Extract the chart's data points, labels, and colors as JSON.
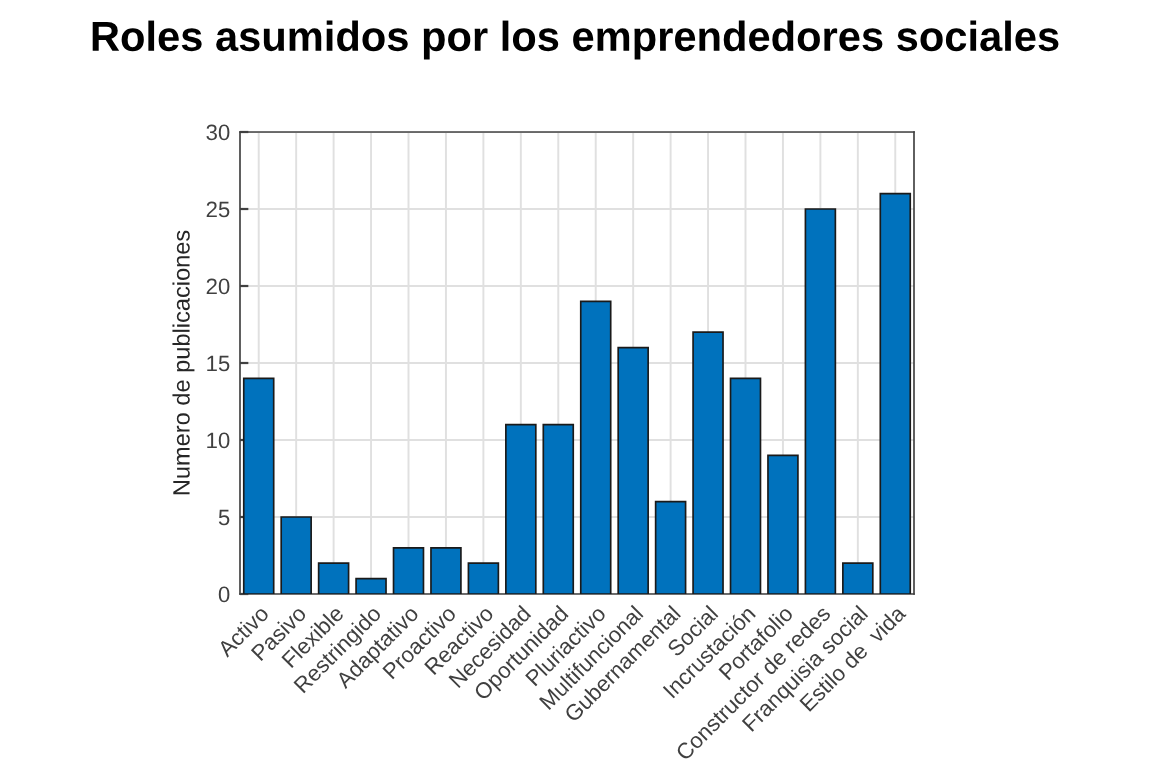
{
  "chart_data": {
    "type": "bar",
    "title": "Roles asumidos por los emprendedores sociales",
    "ylabel": "Numero de publicaciones",
    "categories": [
      "Activo",
      "Pasivo",
      "Flexible",
      "Restringido",
      "Adaptativo",
      "Proactivo",
      "Reactivo",
      "Necesidad",
      "Oportunidad",
      "Pluriactivo",
      "Multifuncional",
      "Gubernamental",
      "Social",
      "Incrustación",
      "Portafolio",
      "Constructor de redes",
      "Franquisia social",
      "Estilo de  vida"
    ],
    "values": [
      14,
      5,
      2,
      1,
      3,
      3,
      2,
      11,
      11,
      19,
      16,
      6,
      17,
      14,
      9,
      25,
      2,
      26
    ],
    "color": "#0072bd",
    "ylim": [
      0,
      30
    ],
    "yticks": [
      0,
      5,
      10,
      15,
      20,
      25,
      30
    ],
    "grid": true
  }
}
